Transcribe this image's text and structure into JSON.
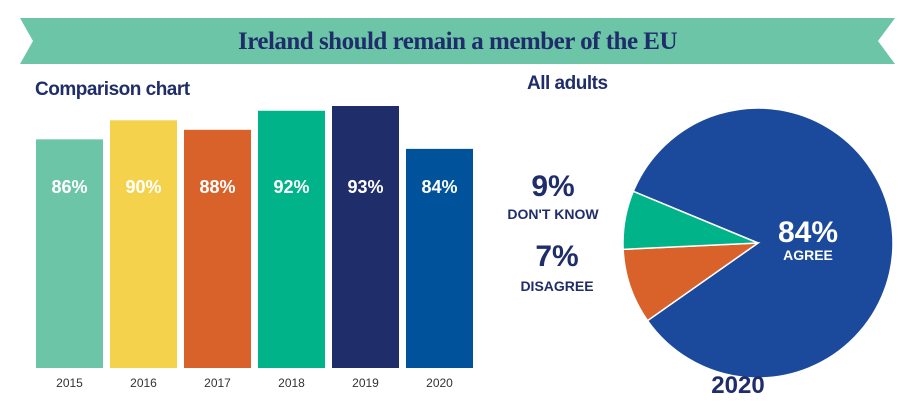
{
  "title": "Ireland should remain a member of the EU",
  "colors": {
    "banner": "#6dc5a8",
    "text": "#1f2d6a"
  },
  "chart_data": [
    {
      "type": "bar",
      "title": "Comparison chart",
      "categories": [
        "2015",
        "2016",
        "2017",
        "2018",
        "2019",
        "2020"
      ],
      "values": [
        86,
        90,
        88,
        92,
        93,
        84
      ],
      "labels": [
        "86%",
        "90%",
        "88%",
        "92%",
        "93%",
        "84%"
      ],
      "colors": [
        "#6dc5a8",
        "#f5d24c",
        "#d9622b",
        "#00b388",
        "#1f2d6a",
        "#00529b"
      ],
      "ylim": [
        38,
        95
      ],
      "grid": false
    },
    {
      "type": "pie",
      "title": "All adults",
      "caption": "2020",
      "slices": [
        {
          "value": 84,
          "pct_label": "84%",
          "label": "AGREE",
          "color": "#1b4a9c"
        },
        {
          "value": 9,
          "pct_label": "9%",
          "label": "DON'T KNOW",
          "color": "#d9622b"
        },
        {
          "value": 7,
          "pct_label": "7%",
          "label": "DISAGREE",
          "color": "#00b388"
        }
      ]
    }
  ]
}
